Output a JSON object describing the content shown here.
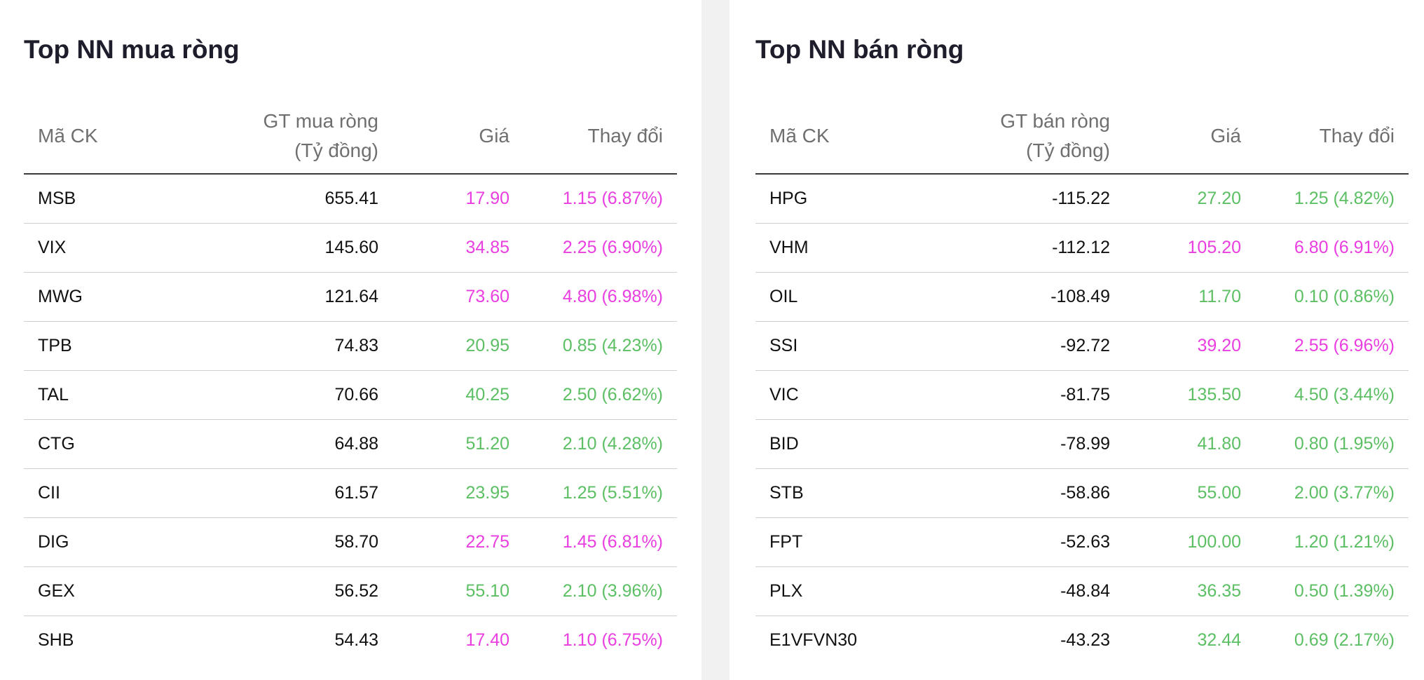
{
  "colors": {
    "ceiling": "#e93ee0",
    "up": "#5cbf64",
    "text": "#111111",
    "header_text": "#6f6f6f",
    "title": "#1d1d2b"
  },
  "buy_panel": {
    "title": "Top NN mua ròng",
    "headers": {
      "code": "Mã CK",
      "value_line1": "GT mua ròng",
      "value_line2": "(Tỷ đồng)",
      "price": "Giá",
      "change": "Thay đổi"
    },
    "rows": [
      {
        "code": "MSB",
        "value": "655.41",
        "price": "17.90",
        "change": "1.15 (6.87%)",
        "status": "ceiling"
      },
      {
        "code": "VIX",
        "value": "145.60",
        "price": "34.85",
        "change": "2.25 (6.90%)",
        "status": "ceiling"
      },
      {
        "code": "MWG",
        "value": "121.64",
        "price": "73.60",
        "change": "4.80 (6.98%)",
        "status": "ceiling"
      },
      {
        "code": "TPB",
        "value": "74.83",
        "price": "20.95",
        "change": "0.85 (4.23%)",
        "status": "up"
      },
      {
        "code": "TAL",
        "value": "70.66",
        "price": "40.25",
        "change": "2.50 (6.62%)",
        "status": "up"
      },
      {
        "code": "CTG",
        "value": "64.88",
        "price": "51.20",
        "change": "2.10 (4.28%)",
        "status": "up"
      },
      {
        "code": "CII",
        "value": "61.57",
        "price": "23.95",
        "change": "1.25 (5.51%)",
        "status": "up"
      },
      {
        "code": "DIG",
        "value": "58.70",
        "price": "22.75",
        "change": "1.45 (6.81%)",
        "status": "ceiling"
      },
      {
        "code": "GEX",
        "value": "56.52",
        "price": "55.10",
        "change": "2.10 (3.96%)",
        "status": "up"
      },
      {
        "code": "SHB",
        "value": "54.43",
        "price": "17.40",
        "change": "1.10 (6.75%)",
        "status": "ceiling"
      }
    ]
  },
  "sell_panel": {
    "title": "Top NN bán ròng",
    "headers": {
      "code": "Mã CK",
      "value_line1": "GT bán ròng",
      "value_line2": "(Tỷ đồng)",
      "price": "Giá",
      "change": "Thay đổi"
    },
    "rows": [
      {
        "code": "HPG",
        "value": "-115.22",
        "price": "27.20",
        "change": "1.25 (4.82%)",
        "status": "up"
      },
      {
        "code": "VHM",
        "value": "-112.12",
        "price": "105.20",
        "change": "6.80 (6.91%)",
        "status": "ceiling"
      },
      {
        "code": "OIL",
        "value": "-108.49",
        "price": "11.70",
        "change": "0.10 (0.86%)",
        "status": "up"
      },
      {
        "code": "SSI",
        "value": "-92.72",
        "price": "39.20",
        "change": "2.55 (6.96%)",
        "status": "ceiling"
      },
      {
        "code": "VIC",
        "value": "-81.75",
        "price": "135.50",
        "change": "4.50 (3.44%)",
        "status": "up"
      },
      {
        "code": "BID",
        "value": "-78.99",
        "price": "41.80",
        "change": "0.80 (1.95%)",
        "status": "up"
      },
      {
        "code": "STB",
        "value": "-58.86",
        "price": "55.00",
        "change": "2.00 (3.77%)",
        "status": "up"
      },
      {
        "code": "FPT",
        "value": "-52.63",
        "price": "100.00",
        "change": "1.20 (1.21%)",
        "status": "up"
      },
      {
        "code": "PLX",
        "value": "-48.84",
        "price": "36.35",
        "change": "0.50 (1.39%)",
        "status": "up"
      },
      {
        "code": "E1VFVN30",
        "value": "-43.23",
        "price": "32.44",
        "change": "0.69 (2.17%)",
        "status": "up"
      }
    ]
  }
}
